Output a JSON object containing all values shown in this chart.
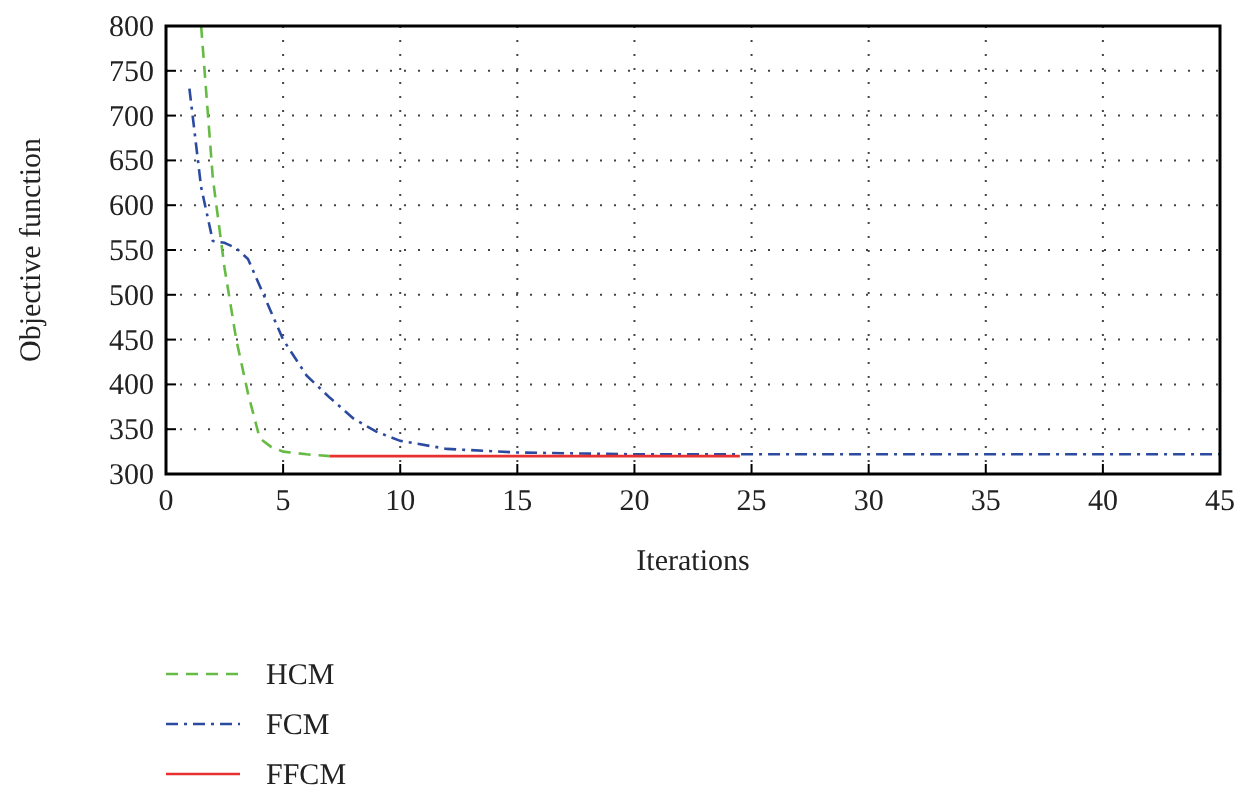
{
  "chart_data": {
    "type": "line",
    "xlabel": "Iterations",
    "ylabel": "Objective function",
    "xlim": [
      0,
      45
    ],
    "xticks": [
      0,
      5,
      10,
      15,
      20,
      25,
      30,
      35,
      40,
      45
    ],
    "ylim": [
      300,
      800
    ],
    "yticks": [
      300,
      350,
      400,
      450,
      500,
      550,
      600,
      650,
      700,
      750,
      800
    ],
    "grid": true,
    "legend": "bottom",
    "marker": "none",
    "series": [
      {
        "name": "HCM",
        "color": "#66bb44",
        "line_style": "dashed",
        "x": [
          1.5,
          2,
          2.5,
          3,
          3.5,
          4,
          4.5,
          5,
          6,
          7
        ],
        "values": [
          800,
          630,
          530,
          450,
          390,
          340,
          330,
          325,
          322,
          320
        ]
      },
      {
        "name": "FCM",
        "color": "#2b4aa0",
        "line_style": "dashdot",
        "x": [
          1,
          1.5,
          2,
          2.5,
          3,
          3.5,
          4,
          4.5,
          5,
          6,
          7,
          8,
          9,
          10,
          12,
          15,
          20,
          25,
          30,
          35,
          40,
          45
        ],
        "values": [
          730,
          620,
          560,
          558,
          552,
          540,
          510,
          480,
          450,
          410,
          385,
          362,
          347,
          337,
          328,
          324,
          322,
          322,
          322,
          322,
          322,
          322
        ]
      },
      {
        "name": "FFCM",
        "color": "#e83030",
        "line_style": "solid",
        "x": [
          7,
          10,
          15,
          20,
          24.5
        ],
        "values": [
          320,
          320,
          320,
          320,
          320
        ]
      }
    ]
  }
}
